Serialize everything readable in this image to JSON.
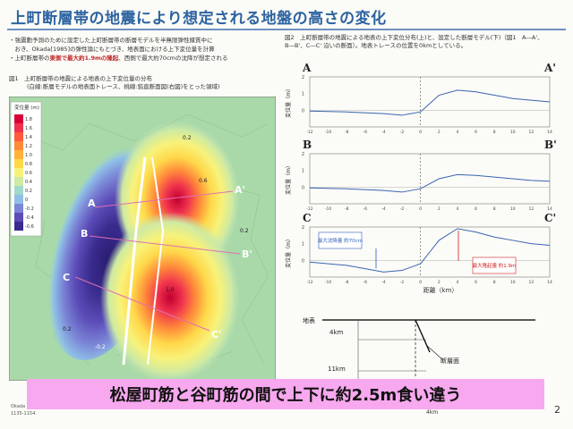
{
  "slide": {
    "title": "上町断層帯の地震により想定される地盤の高さの変化",
    "bullets": [
      {
        "pre": "・強震動予測のために設定した上町断層帯の断層モデルを半無限弾性媒質中に",
        "red": "",
        "post": ""
      },
      {
        "pre": "　おき、Okada[1985]の弾性論にもとづき、地表面における上下変位量を計算",
        "red": "",
        "post": ""
      },
      {
        "pre": "・上町断層帯の",
        "red": "東側で最大約1.9mの隆起",
        "post": "、西側で最大約70cmの沈降が想定される"
      }
    ],
    "fig1_caption": "図1　上町断層帯の地震による地表の上下変位量の分布",
    "fig1_subcaption": "(白線:断層モデルの地表面トレース、桃線:鉛直断面図(右図)をとった領域)",
    "fig2_caption": "図2　上町断層帯の地震による地表の上下変位分布(上)と、設定した断層モデル(下)（図1　A―A'、B―B'、C―C' 沿いの断面）。地表トレースの位置を0kmとしている。",
    "banner": "松屋町筋と谷町筋の間で上下に約2.5m食い違う",
    "page_number": "2",
    "footnote1": "Okada",
    "footnote2": "1135-1154."
  },
  "map": {
    "legend_title": "変位量 (m)",
    "legend_ticks": [
      "1.8",
      "1.6",
      "1.4",
      "1.2",
      "1.0",
      "0.8",
      "0.6",
      "0.4",
      "0.2",
      "0",
      "-0.2",
      "-0.4",
      "-0.6"
    ],
    "legend_colors": [
      "#d9003a",
      "#f0324e",
      "#ff5a3a",
      "#ff8a3a",
      "#ffb13a",
      "#ffd84a",
      "#f8f27a",
      "#cfeaa2",
      "#9fd9c9",
      "#8fbfe6",
      "#7b86d6",
      "#5c4cb8",
      "#3a2b8e"
    ],
    "section_labels": [
      "A",
      "B",
      "C",
      "A'",
      "B'",
      "C'"
    ],
    "contour_labels": [
      "0.2",
      "0.2",
      "0.6",
      "1.0",
      "0.2",
      "-0.2"
    ]
  },
  "sections": {
    "yaxis_label": "変位量（m）",
    "xaxis_label": "距離（km）",
    "xticks": [
      "-12",
      "-10",
      "-8",
      "-6",
      "-4",
      "-2",
      "0",
      "2",
      "4",
      "6",
      "8",
      "10",
      "12",
      "14"
    ],
    "yticks": [
      "2",
      "1",
      "0"
    ],
    "panels": [
      {
        "left": "A",
        "right": "A'"
      },
      {
        "left": "B",
        "right": "B'"
      },
      {
        "left": "C",
        "right": "C'"
      }
    ],
    "annot_subsidence": "最大沈降量 約70cm",
    "annot_uplift": "最大隆起量 約1.9m"
  },
  "chart_data": [
    {
      "type": "line",
      "title": "A-A'",
      "xlabel": "距離（km）",
      "ylabel": "変位量（m）",
      "xlim": [
        -12,
        14
      ],
      "ylim": [
        -1,
        2
      ],
      "series": [
        {
          "x": [
            -12,
            -8,
            -4,
            -2,
            0,
            1,
            2,
            4,
            6,
            8,
            10,
            12,
            14
          ],
          "values": [
            -0.05,
            -0.1,
            -0.2,
            -0.3,
            -0.1,
            0.4,
            0.9,
            1.2,
            1.1,
            0.9,
            0.7,
            0.6,
            0.5
          ]
        }
      ]
    },
    {
      "type": "line",
      "title": "B-B'",
      "xlabel": "距離（km）",
      "ylabel": "変位量（m）",
      "xlim": [
        -12,
        14
      ],
      "ylim": [
        -1,
        2
      ],
      "series": [
        {
          "x": [
            -12,
            -8,
            -4,
            -2,
            0,
            1,
            2,
            4,
            6,
            8,
            10,
            12,
            14
          ],
          "values": [
            -0.05,
            -0.1,
            -0.2,
            -0.3,
            -0.1,
            0.2,
            0.5,
            0.75,
            0.7,
            0.6,
            0.5,
            0.4,
            0.35
          ]
        }
      ]
    },
    {
      "type": "line",
      "title": "C-C'",
      "xlabel": "距離（km）",
      "ylabel": "変位量（m）",
      "xlim": [
        -12,
        14
      ],
      "ylim": [
        -1,
        2
      ],
      "series": [
        {
          "x": [
            -12,
            -8,
            -6,
            -4,
            -2,
            0,
            1,
            2,
            4,
            6,
            8,
            10,
            12,
            14
          ],
          "values": [
            -0.1,
            -0.3,
            -0.5,
            -0.7,
            -0.6,
            -0.2,
            0.5,
            1.2,
            1.9,
            1.7,
            1.4,
            1.2,
            1.0,
            0.9
          ]
        }
      ]
    }
  ],
  "geo": {
    "surface_label": "地表",
    "depth1": "4km",
    "depth2": "11km",
    "fault_label": "断層面",
    "bottom_km": "4km"
  },
  "colors": {
    "title": "#2d63a0",
    "banner": "#f7a8ee",
    "line": "#3a64b0",
    "annot_blue": "#2d5fc0",
    "annot_red": "#d02020"
  }
}
